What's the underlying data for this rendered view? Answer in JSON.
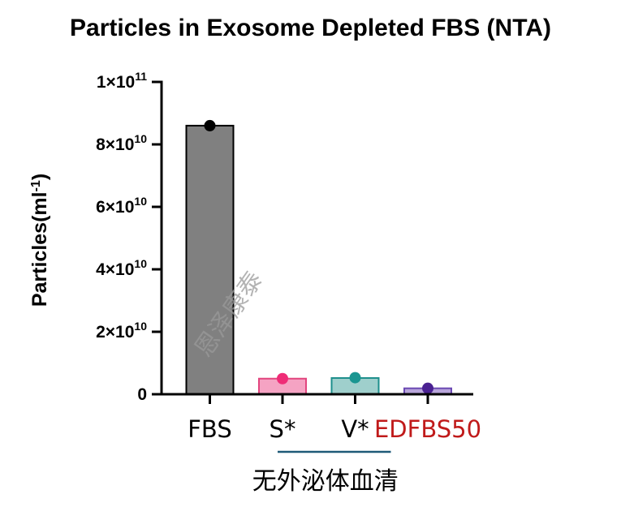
{
  "chart_data": {
    "type": "bar",
    "title": "Particles in Exosome Depleted FBS (NTA)",
    "ylabel_main": "Particles(ml",
    "ylabel_sup": "-1",
    "ylabel_end": ")",
    "xlabel": "",
    "ylim": [
      0,
      100000000000
    ],
    "grid": false,
    "legend": "none",
    "yticks": [
      {
        "value": 0,
        "mantissa": "0",
        "exp": ""
      },
      {
        "value": 20000000000,
        "mantissa": "2×10",
        "exp": "10"
      },
      {
        "value": 40000000000,
        "mantissa": "4×10",
        "exp": "10"
      },
      {
        "value": 60000000000,
        "mantissa": "6×10",
        "exp": "10"
      },
      {
        "value": 80000000000,
        "mantissa": "8×10",
        "exp": "10"
      },
      {
        "value": 100000000000,
        "mantissa": "1×10",
        "exp": "11"
      }
    ],
    "categories": [
      "FBS",
      "S*",
      "V*",
      "EDFBS50"
    ],
    "values": [
      86000000000,
      5000000000,
      5200000000,
      1900000000
    ],
    "points": [
      86000000000,
      5000000000,
      5300000000,
      1900000000
    ],
    "bar_fill": [
      "#808080",
      "#f5a3c3",
      "#9fcfcc",
      "#b9a6dc"
    ],
    "bar_stroke": [
      "#000000",
      "#e2457e",
      "#1e8f8c",
      "#6a48b2"
    ],
    "point_color": [
      "#000000",
      "#ef2c77",
      "#1a9691",
      "#4a2192"
    ],
    "label_color": [
      "#000000",
      "#000000",
      "#000000",
      "#c01a1a"
    ],
    "group_bracket": {
      "label": "无外泌体血清",
      "spans": [
        "S*",
        "V*"
      ],
      "color": "#1f5a78"
    },
    "watermark": "恩泽康泰"
  }
}
